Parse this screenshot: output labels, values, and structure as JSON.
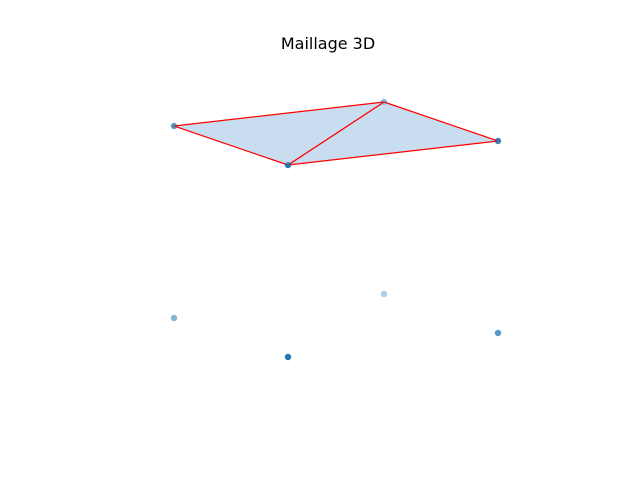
{
  "chart_data": {
    "type": "scatter",
    "title": "Maillage 3D",
    "axes_visible": false,
    "grid": false,
    "colors": {
      "points": "#1f77b4",
      "mesh_face": "#c6dbef",
      "mesh_edge": "#ff0000"
    },
    "top_points": [
      {
        "x": 0.0,
        "y": 0.0,
        "z": 1.0
      },
      {
        "x": 1.0,
        "y": 0.0,
        "z": 1.0
      },
      {
        "x": 1.0,
        "y": 1.0,
        "z": 1.0
      },
      {
        "x": 0.0,
        "y": 1.0,
        "z": 1.0
      }
    ],
    "bottom_points": [
      {
        "x": 0.0,
        "y": 0.0,
        "z": 0.0
      },
      {
        "x": 1.0,
        "y": 0.0,
        "z": 0.0
      },
      {
        "x": 1.0,
        "y": 1.0,
        "z": 0.0
      },
      {
        "x": 0.0,
        "y": 1.0,
        "z": 0.0
      }
    ],
    "mesh_triangles": [
      [
        0,
        1,
        2
      ],
      [
        0,
        2,
        3
      ]
    ]
  }
}
